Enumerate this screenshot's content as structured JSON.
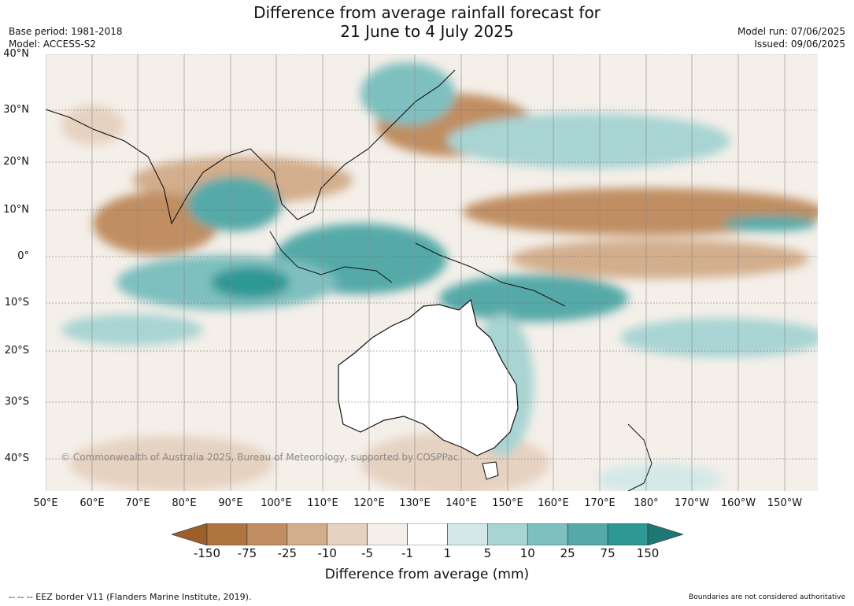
{
  "header": {
    "title_line1": "Difference from average rainfall forecast for",
    "title_line2": "21 June to 4 July 2025",
    "base_period": "Base period: 1981-2018",
    "model": "Model: ACCESS-S2",
    "model_run": "Model run: 07/06/2025",
    "issued": "Issued: 09/06/2025"
  },
  "map": {
    "lat_labels": [
      "40°N",
      "30°N",
      "20°N",
      "10°N",
      "0°",
      "10°S",
      "20°S",
      "30°S",
      "40°S"
    ],
    "lon_labels": [
      "50°E",
      "60°E",
      "70°E",
      "80°E",
      "90°E",
      "100°E",
      "110°E",
      "120°E",
      "130°E",
      "140°E",
      "150°E",
      "160°E",
      "170°E",
      "180°",
      "170°W",
      "160°W",
      "150°W"
    ],
    "watermark": "© Commonwealth of Australia 2025, Bureau of Meteorology, supported by COSPPac"
  },
  "colorbar": {
    "ticks": [
      "-150",
      "-75",
      "-25",
      "-10",
      "-5",
      "-1",
      "1",
      "5",
      "10",
      "25",
      "75",
      "150"
    ],
    "colors": [
      "#9c5f2a",
      "#b07440",
      "#c08e62",
      "#d3ae8c",
      "#e6d2c0",
      "#f4efe9",
      "#ffffff",
      "#d3e9e8",
      "#a8d4d3",
      "#7ec0bf",
      "#55aaa9",
      "#2e9895",
      "#1f7775"
    ],
    "title": "Difference from average (mm)"
  },
  "footer": {
    "eez_note": "--  --  -- EEZ border V11 (Flanders Marine Institute, 2019).",
    "disclaimer": "Boundaries are not considered authoritative"
  }
}
